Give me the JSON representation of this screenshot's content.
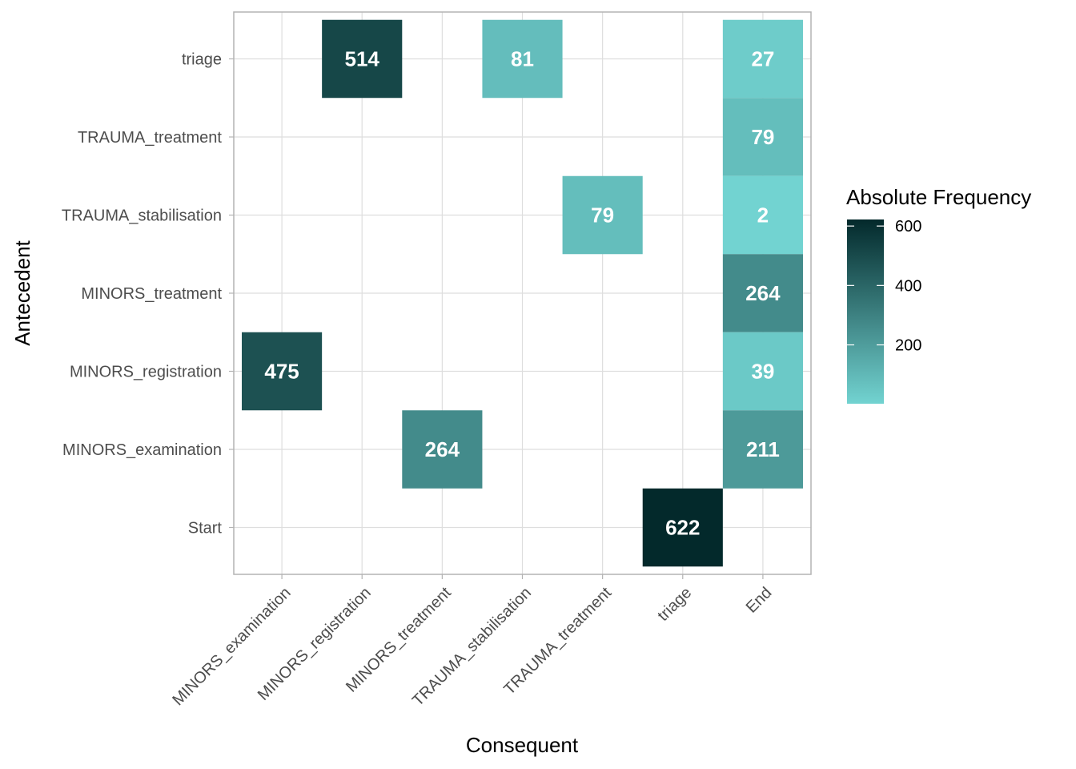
{
  "chart_data": {
    "type": "heatmap",
    "title": "",
    "xlabel": "Consequent",
    "ylabel": "Antecedent",
    "x_categories": [
      "MINORS_examination",
      "MINORS_registration",
      "MINORS_treatment",
      "TRAUMA_stabilisation",
      "TRAUMA_treatment",
      "triage",
      "End"
    ],
    "y_categories": [
      "Start",
      "MINORS_examination",
      "MINORS_registration",
      "MINORS_treatment",
      "TRAUMA_stabilisation",
      "TRAUMA_treatment",
      "triage"
    ],
    "cells": [
      {
        "antecedent": "triage",
        "consequent": "MINORS_registration",
        "value": 514
      },
      {
        "antecedent": "triage",
        "consequent": "TRAUMA_stabilisation",
        "value": 81
      },
      {
        "antecedent": "triage",
        "consequent": "End",
        "value": 27
      },
      {
        "antecedent": "TRAUMA_treatment",
        "consequent": "End",
        "value": 79
      },
      {
        "antecedent": "TRAUMA_stabilisation",
        "consequent": "TRAUMA_treatment",
        "value": 79
      },
      {
        "antecedent": "TRAUMA_stabilisation",
        "consequent": "End",
        "value": 2
      },
      {
        "antecedent": "MINORS_treatment",
        "consequent": "End",
        "value": 264
      },
      {
        "antecedent": "MINORS_registration",
        "consequent": "MINORS_examination",
        "value": 475
      },
      {
        "antecedent": "MINORS_registration",
        "consequent": "End",
        "value": 39
      },
      {
        "antecedent": "MINORS_examination",
        "consequent": "MINORS_treatment",
        "value": 264
      },
      {
        "antecedent": "MINORS_examination",
        "consequent": "End",
        "value": 211
      },
      {
        "antecedent": "Start",
        "consequent": "triage",
        "value": 622
      }
    ],
    "legend": {
      "title": "Absolute Frequency",
      "ticks": [
        200,
        400,
        600
      ],
      "range": [
        2,
        622
      ],
      "position": "right"
    },
    "color_low": "#72d3d1",
    "color_high": "#03292b",
    "grid": true
  }
}
